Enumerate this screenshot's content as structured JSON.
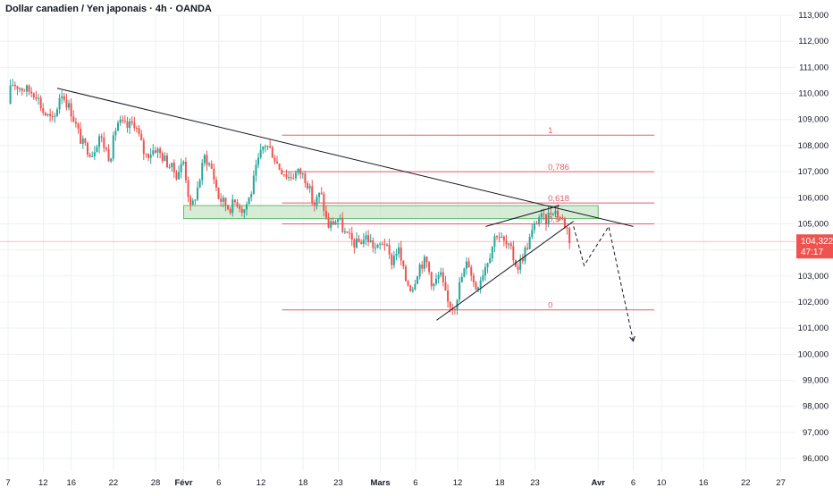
{
  "header": {
    "title": "Dollar canadien / Yen japonais · 4h · OANDA"
  },
  "colors": {
    "up": "#26a69a",
    "down": "#ef5350",
    "fib": "#e85d6a",
    "zone_fill": "#c8e6c9",
    "zone_stroke": "#66bb6a",
    "trendline": "#131722",
    "price_badge": "#ef5350",
    "grid": "#eef0f3"
  },
  "price_badge": {
    "price": "104,322",
    "countdown": "47:17"
  },
  "chart_data": {
    "type": "candlestick",
    "title": "Dollar canadien / Yen japonais · 4h · OANDA",
    "xlabel": "",
    "ylabel": "",
    "grid": true,
    "ylim": [
      95.6,
      113.4
    ],
    "y_ticks": [
      "113,000",
      "112,000",
      "111,000",
      "110,000",
      "109,000",
      "108,000",
      "107,000",
      "106,000",
      "105,000",
      "104,000",
      "103,000",
      "102,000",
      "101,000",
      "100,000",
      "99,000",
      "98,000",
      "97,000",
      "96,000"
    ],
    "x_ticks": [
      {
        "label": "7",
        "day": 0
      },
      {
        "label": "12",
        "day": 5
      },
      {
        "label": "16",
        "day": 9
      },
      {
        "label": "22",
        "day": 15
      },
      {
        "label": "28",
        "day": 21
      },
      {
        "label": "Févr",
        "day": 25,
        "bold": true
      },
      {
        "label": "6",
        "day": 30
      },
      {
        "label": "12",
        "day": 36
      },
      {
        "label": "18",
        "day": 42
      },
      {
        "label": "23",
        "day": 47
      },
      {
        "label": "Mars",
        "day": 53,
        "bold": true
      },
      {
        "label": "6",
        "day": 58
      },
      {
        "label": "12",
        "day": 64
      },
      {
        "label": "18",
        "day": 70
      },
      {
        "label": "23",
        "day": 75
      },
      {
        "label": "Avr",
        "day": 84,
        "bold": true
      },
      {
        "label": "6",
        "day": 89
      },
      {
        "label": "10",
        "day": 93
      },
      {
        "label": "16",
        "day": 99
      },
      {
        "label": "22",
        "day": 105
      },
      {
        "label": "27",
        "day": 110
      }
    ],
    "last_price": 104.322,
    "price_path": [
      [
        0,
        109.6
      ],
      [
        0.5,
        110.4
      ],
      [
        2,
        110.2
      ],
      [
        4,
        110.0
      ],
      [
        5,
        109.3
      ],
      [
        6.5,
        108.9
      ],
      [
        7.5,
        110.1
      ],
      [
        9,
        109.3
      ],
      [
        10.5,
        108.1
      ],
      [
        12,
        107.7
      ],
      [
        13,
        108.4
      ],
      [
        14.5,
        107.5
      ],
      [
        15.5,
        108.9
      ],
      [
        17,
        108.7
      ],
      [
        18,
        108.9
      ],
      [
        19.5,
        107.6
      ],
      [
        21,
        107.9
      ],
      [
        22.5,
        107.4
      ],
      [
        24,
        106.9
      ],
      [
        25,
        107.4
      ],
      [
        26,
        105.5
      ],
      [
        27,
        106.4
      ],
      [
        28,
        107.6
      ],
      [
        29,
        107.1
      ],
      [
        30,
        106.0
      ],
      [
        31.5,
        105.6
      ],
      [
        32.5,
        105.9
      ],
      [
        33.5,
        105.5
      ],
      [
        34.5,
        106.1
      ],
      [
        35.5,
        107.3
      ],
      [
        36.5,
        108.1
      ],
      [
        37.5,
        107.8
      ],
      [
        38.5,
        107.2
      ],
      [
        40,
        106.8
      ],
      [
        41.5,
        107.0
      ],
      [
        42.5,
        106.7
      ],
      [
        43.5,
        105.7
      ],
      [
        44.5,
        106.2
      ],
      [
        45.5,
        104.9
      ],
      [
        47,
        105.2
      ],
      [
        48,
        104.6
      ],
      [
        49.5,
        104.2
      ],
      [
        51,
        104.5
      ],
      [
        52.5,
        104.0
      ],
      [
        53.5,
        104.4
      ],
      [
        54.5,
        103.5
      ],
      [
        55.5,
        104.1
      ],
      [
        56.5,
        102.9
      ],
      [
        57.5,
        102.5
      ],
      [
        58.5,
        103.4
      ],
      [
        59.5,
        103.6
      ],
      [
        60.5,
        102.6
      ],
      [
        61.5,
        103.1
      ],
      [
        62.5,
        102.0
      ],
      [
        63.5,
        101.8
      ],
      [
        64.5,
        102.9
      ],
      [
        65.5,
        103.6
      ],
      [
        66.5,
        102.5
      ],
      [
        67.5,
        103.1
      ],
      [
        68.5,
        103.8
      ],
      [
        69.5,
        104.7
      ],
      [
        70.5,
        104.3
      ],
      [
        71.5,
        104.0
      ],
      [
        72.5,
        103.3
      ],
      [
        73.5,
        103.9
      ],
      [
        74.5,
        104.6
      ],
      [
        75.5,
        105.3
      ],
      [
        76.5,
        105.1
      ],
      [
        77.5,
        105.6
      ],
      [
        78.5,
        105.3
      ],
      [
        79.5,
        104.9
      ],
      [
        80,
        104.322
      ]
    ],
    "trendlines": [
      {
        "name": "Descending trendline",
        "from": [
          7,
          110.2
        ],
        "to": [
          89,
          104.9
        ]
      },
      {
        "name": "Rising wedge lower",
        "from": [
          61,
          101.3
        ],
        "to": [
          80.5,
          105.1
        ]
      },
      {
        "name": "Rising wedge upper",
        "from": [
          68,
          104.9
        ],
        "to": [
          78.5,
          105.7
        ]
      }
    ],
    "zone": {
      "from_day": 25,
      "to_day": 84,
      "low": 105.2,
      "high": 105.7
    },
    "fibonacci": {
      "from_day": 39,
      "to_day": 92,
      "levels": [
        {
          "label": "1",
          "price": 108.4
        },
        {
          "label": "0,786",
          "price": 107.0
        },
        {
          "label": "0,618",
          "price": 105.8
        },
        {
          "label": "0,5",
          "price": 105.0
        },
        {
          "label": "0",
          "price": 101.7
        }
      ]
    },
    "projection": [
      [
        80.5,
        104.9
      ],
      [
        82,
        103.4
      ],
      [
        85.5,
        104.9
      ],
      [
        89,
        100.5
      ]
    ]
  }
}
